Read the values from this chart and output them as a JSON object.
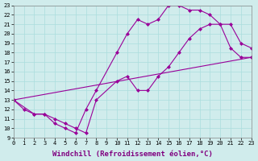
{
  "line1_x": [
    0,
    1,
    2,
    3,
    4,
    5,
    6,
    7,
    8,
    10,
    11,
    12,
    13,
    14,
    15,
    16,
    17,
    18,
    19,
    20,
    21,
    22,
    23
  ],
  "line1_y": [
    13,
    12,
    11.5,
    11.5,
    10.5,
    10,
    9.5,
    12,
    14,
    18,
    20,
    21.5,
    21,
    21.5,
    23,
    23,
    22.5,
    22.5,
    22,
    21,
    18.5,
    17.5,
    17.5
  ],
  "line2_x": [
    0,
    2,
    3,
    4,
    5,
    6,
    7,
    8,
    10,
    11,
    12,
    13,
    14,
    15,
    16,
    17,
    18,
    19,
    20,
    21,
    22,
    23
  ],
  "line2_y": [
    13,
    11.5,
    11.5,
    11,
    10.5,
    10,
    9.5,
    13,
    15,
    15.5,
    14,
    14,
    15.5,
    16.5,
    18,
    19.5,
    20.5,
    21,
    21,
    21,
    19,
    18.5
  ],
  "line3_x": [
    0,
    23
  ],
  "line3_y": [
    13,
    17.5
  ],
  "line_color": "#990099",
  "bg_color": "#d0ecec",
  "grid_color": "#aadddd",
  "xlabel": "Windchill (Refroidissement éolien,°C)",
  "xlim": [
    0,
    23
  ],
  "ylim": [
    9,
    23
  ],
  "xticks": [
    0,
    1,
    2,
    3,
    4,
    5,
    6,
    7,
    8,
    9,
    10,
    11,
    12,
    13,
    14,
    15,
    16,
    17,
    18,
    19,
    20,
    21,
    22,
    23
  ],
  "yticks": [
    9,
    10,
    11,
    12,
    13,
    14,
    15,
    16,
    17,
    18,
    19,
    20,
    21,
    22,
    23
  ],
  "marker": "D",
  "markersize": 2.0,
  "linewidth": 0.8,
  "xlabel_fontsize": 6.5,
  "tick_fontsize": 5.0
}
